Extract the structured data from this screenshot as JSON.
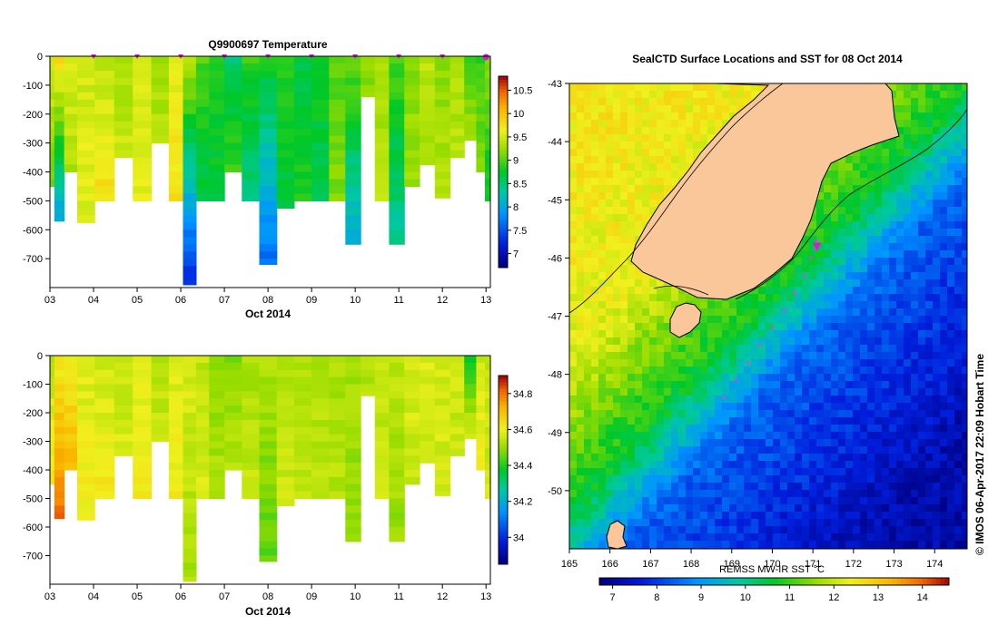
{
  "title_top": "Q9900697  Temperature",
  "xlabel_bottom": "Oct 2014",
  "map_title": "SealCTD Surface Locations and SST for 08 Oct 2014",
  "colorbar_label": "REMSS MW-IR SST °C",
  "credit": "© IMOS 06-Apr-2017 22:09 Hobart Time",
  "colors": {
    "land": "#f9c79a",
    "profile_marker": "#cc22cc",
    "track": "#e040e0"
  },
  "chart_data": [
    {
      "type": "heatmap",
      "name": "temperature-section",
      "title": "Q9900697  Temperature",
      "xlabel": "Oct 2014",
      "ylabel": "",
      "x_ticks": [
        "03",
        "04",
        "05",
        "06",
        "07",
        "08",
        "09",
        "10",
        "11",
        "12",
        "13"
      ],
      "y_ticks": [
        "0",
        "-100",
        "-200",
        "-300",
        "-400",
        "-500",
        "-600",
        "-700"
      ],
      "xlim": [
        3,
        13.1
      ],
      "ylim": [
        -800,
        0
      ],
      "colorbar_ticks": [
        "7",
        "7.5",
        "8",
        "8.5",
        "9",
        "9.5",
        "10",
        "10.5"
      ],
      "colorbar_range": [
        6.7,
        10.8
      ],
      "profile_days": [
        4,
        5,
        6,
        7,
        8,
        9,
        10,
        11,
        12,
        13
      ],
      "profiles": [
        {
          "day": 3.0,
          "max_depth": 450,
          "t_surf": 9.6,
          "t_deep": 9.0
        },
        {
          "day": 3.2,
          "max_depth": 570,
          "t_surf": 9.8,
          "t_deep": 7.9
        },
        {
          "day": 3.45,
          "max_depth": 400,
          "t_surf": 9.6,
          "t_deep": 9.3
        },
        {
          "day": 3.8,
          "max_depth": 580,
          "t_surf": 9.5,
          "t_deep": 9.6
        },
        {
          "day": 4.25,
          "max_depth": 500,
          "t_surf": 9.4,
          "t_deep": 9.8
        },
        {
          "day": 4.7,
          "max_depth": 360,
          "t_surf": 9.3,
          "t_deep": 9.5
        },
        {
          "day": 5.1,
          "max_depth": 500,
          "t_surf": 9.5,
          "t_deep": 9.6
        },
        {
          "day": 5.55,
          "max_depth": 300,
          "t_surf": 9.3,
          "t_deep": 9.4
        },
        {
          "day": 5.9,
          "max_depth": 500,
          "t_surf": 9.6,
          "t_deep": 9.8
        },
        {
          "day": 6.2,
          "max_depth": 790,
          "t_surf": 9.4,
          "t_deep": 7.2
        },
        {
          "day": 6.5,
          "max_depth": 500,
          "t_surf": 9.0,
          "t_deep": 8.6
        },
        {
          "day": 6.8,
          "max_depth": 500,
          "t_surf": 8.8,
          "t_deep": 8.7
        },
        {
          "day": 7.2,
          "max_depth": 400,
          "t_surf": 8.5,
          "t_deep": 9.0
        },
        {
          "day": 7.6,
          "max_depth": 500,
          "t_surf": 8.9,
          "t_deep": 8.4
        },
        {
          "day": 8.0,
          "max_depth": 720,
          "t_surf": 8.8,
          "t_deep": 7.6
        },
        {
          "day": 8.4,
          "max_depth": 530,
          "t_surf": 8.9,
          "t_deep": 8.6
        },
        {
          "day": 8.8,
          "max_depth": 500,
          "t_surf": 8.6,
          "t_deep": 8.9
        },
        {
          "day": 9.2,
          "max_depth": 500,
          "t_surf": 8.8,
          "t_deep": 8.6
        },
        {
          "day": 9.6,
          "max_depth": 500,
          "t_surf": 9.0,
          "t_deep": 9.2
        },
        {
          "day": 9.95,
          "max_depth": 660,
          "t_surf": 9.1,
          "t_deep": 8.0
        },
        {
          "day": 10.3,
          "max_depth": 140,
          "t_surf": 9.2,
          "t_deep": 9.2
        },
        {
          "day": 10.6,
          "max_depth": 500,
          "t_surf": 9.3,
          "t_deep": 9.4
        },
        {
          "day": 10.95,
          "max_depth": 660,
          "t_surf": 9.0,
          "t_deep": 8.3
        },
        {
          "day": 11.3,
          "max_depth": 450,
          "t_surf": 9.2,
          "t_deep": 9.3
        },
        {
          "day": 11.65,
          "max_depth": 380,
          "t_surf": 9.4,
          "t_deep": 9.3
        },
        {
          "day": 12.0,
          "max_depth": 490,
          "t_surf": 9.2,
          "t_deep": 9.4
        },
        {
          "day": 12.35,
          "max_depth": 350,
          "t_surf": 9.3,
          "t_deep": 9.4
        },
        {
          "day": 12.65,
          "max_depth": 290,
          "t_surf": 9.0,
          "t_deep": 9.3
        },
        {
          "day": 12.9,
          "max_depth": 400,
          "t_surf": 8.9,
          "t_deep": 9.2
        },
        {
          "day": 13.05,
          "max_depth": 500,
          "t_surf": 9.2,
          "t_deep": 8.7
        }
      ]
    },
    {
      "type": "heatmap",
      "name": "salinity-section",
      "title": "",
      "xlabel": "Oct 2014",
      "ylabel": "",
      "x_ticks": [
        "03",
        "04",
        "05",
        "06",
        "07",
        "08",
        "09",
        "10",
        "11",
        "12",
        "13"
      ],
      "y_ticks": [
        "0",
        "-100",
        "-200",
        "-300",
        "-400",
        "-500",
        "-600",
        "-700"
      ],
      "xlim": [
        3,
        13.1
      ],
      "ylim": [
        -800,
        0
      ],
      "colorbar_ticks": [
        "34",
        "34.2",
        "34.4",
        "34.6",
        "34.8"
      ],
      "colorbar_range": [
        33.85,
        34.9
      ],
      "profiles": [
        {
          "day": 3.0,
          "max_depth": 450,
          "t_surf": 34.55,
          "t_deep": 34.62
        },
        {
          "day": 3.2,
          "max_depth": 570,
          "t_surf": 34.62,
          "t_deep": 34.82
        },
        {
          "day": 3.45,
          "max_depth": 400,
          "t_surf": 34.62,
          "t_deep": 34.72
        },
        {
          "day": 3.8,
          "max_depth": 580,
          "t_surf": 34.58,
          "t_deep": 34.62
        },
        {
          "day": 4.25,
          "max_depth": 500,
          "t_surf": 34.56,
          "t_deep": 34.63
        },
        {
          "day": 4.7,
          "max_depth": 360,
          "t_surf": 34.55,
          "t_deep": 34.58
        },
        {
          "day": 5.1,
          "max_depth": 500,
          "t_surf": 34.58,
          "t_deep": 34.62
        },
        {
          "day": 5.55,
          "max_depth": 300,
          "t_surf": 34.54,
          "t_deep": 34.56
        },
        {
          "day": 5.9,
          "max_depth": 500,
          "t_surf": 34.58,
          "t_deep": 34.62
        },
        {
          "day": 6.2,
          "max_depth": 790,
          "t_surf": 34.58,
          "t_deep": 34.52
        },
        {
          "day": 6.5,
          "max_depth": 500,
          "t_surf": 34.55,
          "t_deep": 34.58
        },
        {
          "day": 6.8,
          "max_depth": 500,
          "t_surf": 34.48,
          "t_deep": 34.54
        },
        {
          "day": 7.2,
          "max_depth": 400,
          "t_surf": 34.48,
          "t_deep": 34.55
        },
        {
          "day": 7.6,
          "max_depth": 500,
          "t_surf": 34.52,
          "t_deep": 34.56
        },
        {
          "day": 8.0,
          "max_depth": 720,
          "t_surf": 34.53,
          "t_deep": 34.45
        },
        {
          "day": 8.4,
          "max_depth": 530,
          "t_surf": 34.53,
          "t_deep": 34.56
        },
        {
          "day": 8.8,
          "max_depth": 500,
          "t_surf": 34.52,
          "t_deep": 34.56
        },
        {
          "day": 9.2,
          "max_depth": 500,
          "t_surf": 34.52,
          "t_deep": 34.55
        },
        {
          "day": 9.6,
          "max_depth": 500,
          "t_surf": 34.52,
          "t_deep": 34.54
        },
        {
          "day": 9.95,
          "max_depth": 660,
          "t_surf": 34.52,
          "t_deep": 34.5
        },
        {
          "day": 10.3,
          "max_depth": 140,
          "t_surf": 34.53,
          "t_deep": 34.53
        },
        {
          "day": 10.6,
          "max_depth": 500,
          "t_surf": 34.55,
          "t_deep": 34.56
        },
        {
          "day": 10.95,
          "max_depth": 660,
          "t_surf": 34.55,
          "t_deep": 34.5
        },
        {
          "day": 11.3,
          "max_depth": 450,
          "t_surf": 34.58,
          "t_deep": 34.56
        },
        {
          "day": 11.65,
          "max_depth": 380,
          "t_surf": 34.58,
          "t_deep": 34.56
        },
        {
          "day": 12.0,
          "max_depth": 490,
          "t_surf": 34.57,
          "t_deep": 34.57
        },
        {
          "day": 12.35,
          "max_depth": 350,
          "t_surf": 34.56,
          "t_deep": 34.56
        },
        {
          "day": 12.65,
          "max_depth": 290,
          "t_surf": 34.4,
          "t_deep": 34.58
        },
        {
          "day": 12.9,
          "max_depth": 400,
          "t_surf": 34.56,
          "t_deep": 34.62
        },
        {
          "day": 13.05,
          "max_depth": 500,
          "t_surf": 34.55,
          "t_deep": 34.57
        }
      ]
    },
    {
      "type": "heatmap",
      "name": "sst-map",
      "title": "SealCTD Surface Locations and SST for 08 Oct 2014",
      "x_ticks": [
        "165",
        "166",
        "167",
        "168",
        "169",
        "170",
        "171",
        "172",
        "173",
        "174"
      ],
      "y_ticks": [
        "-43",
        "-44",
        "-45",
        "-46",
        "-47",
        "-48",
        "-49",
        "-50"
      ],
      "xlim": [
        165,
        174.8
      ],
      "ylim": [
        -51,
        -43
      ],
      "colorbar_ticks": [
        "7",
        "8",
        "9",
        "10",
        "11",
        "12",
        "13",
        "14"
      ],
      "colorbar_range": [
        6.7,
        14.6
      ],
      "track_points": [
        [
          171.1,
          -45.7
        ],
        [
          171.05,
          -45.85
        ],
        [
          170.95,
          -46.0
        ],
        [
          170.8,
          -46.3
        ],
        [
          170.55,
          -46.6
        ],
        [
          170.3,
          -46.9
        ],
        [
          170.0,
          -47.2
        ],
        [
          169.7,
          -47.5
        ],
        [
          169.4,
          -47.8
        ],
        [
          169.1,
          -48.1
        ],
        [
          168.8,
          -48.4
        ]
      ],
      "markers": [
        [
          171.1,
          -45.8
        ]
      ]
    }
  ]
}
